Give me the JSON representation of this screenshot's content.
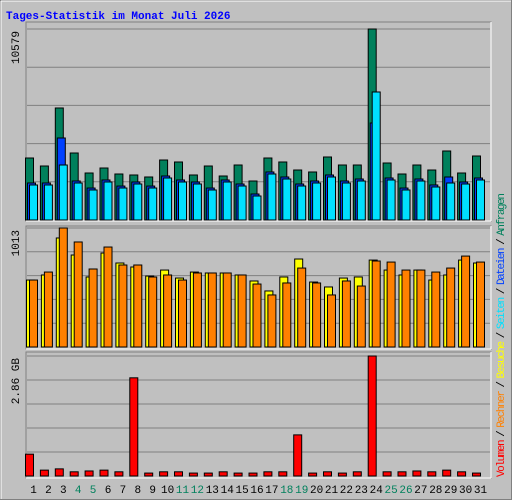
{
  "title": "Tages-Statistik im Monat Juli 2026",
  "legend_separator": "/",
  "chart_data": [
    {
      "type": "bar",
      "ylim": [
        0,
        10579
      ],
      "yticks": [
        10579
      ],
      "series": [
        {
          "name": "Anfragen",
          "color": "#00805c",
          "values": [
            3434,
            2991,
            6204,
            3711,
            2603,
            2880,
            2548,
            2493,
            2382,
            3323,
            3213,
            2493,
            2991,
            2437,
            3046,
            2160,
            3434,
            3213,
            2769,
            2659,
            3490,
            3046,
            3046,
            10579,
            3157,
            2548,
            3046,
            2769,
            3822,
            2603,
            3545
          ]
        },
        {
          "name": "Dateien",
          "color": "#0040ff",
          "values": [
            2050,
            2050,
            4542,
            2160,
            1770,
            2216,
            1880,
            2105,
            1880,
            2437,
            2216,
            2105,
            1770,
            2216,
            1994,
            1440,
            2660,
            2382,
            1994,
            2160,
            2493,
            2160,
            2271,
            5373,
            2326,
            1770,
            2271,
            1940,
            2382,
            2105,
            2326
          ]
        },
        {
          "name": "Seiten",
          "color": "#00e0ff",
          "values": [
            1939,
            1939,
            3046,
            2049,
            1662,
            2105,
            1772,
            1994,
            1772,
            2326,
            2105,
            1994,
            1662,
            2105,
            1883,
            1329,
            2548,
            2271,
            1883,
            2049,
            2382,
            2049,
            2160,
            7090,
            2216,
            1662,
            2160,
            1828,
            2049,
            1994,
            2216
          ]
        }
      ]
    },
    {
      "type": "bar",
      "ylim": [
        0,
        1013
      ],
      "yticks": [
        1013
      ],
      "series": [
        {
          "name": "Besuche",
          "color": "#ffff00",
          "values": [
            570,
            613,
            928,
            783,
            596,
            800,
            715,
            681,
            604,
            655,
            587,
            638,
            630,
            630,
            613,
            562,
            477,
            596,
            749,
            553,
            511,
            587,
            596,
            740,
            655,
            613,
            655,
            570,
            613,
            740,
            715
          ]
        },
        {
          "name": "Rechner",
          "color": "#ff8000",
          "values": [
            570,
            638,
            1013,
            894,
            664,
            851,
            698,
            698,
            596,
            613,
            570,
            630,
            630,
            630,
            613,
            536,
            443,
            545,
            672,
            545,
            443,
            562,
            519,
            732,
            723,
            655,
            655,
            638,
            672,
            774,
            723
          ]
        }
      ]
    },
    {
      "type": "bar",
      "ylim": [
        0,
        2.86
      ],
      "yticks": [
        {
          "value": 2.86,
          "label": "2.86 GB"
        }
      ],
      "categories": [
        "1",
        "2",
        "3",
        "4",
        "5",
        "6",
        "7",
        "8",
        "9",
        "10",
        "11",
        "12",
        "13",
        "14",
        "15",
        "16",
        "17",
        "18",
        "19",
        "20",
        "21",
        "22",
        "23",
        "24",
        "25",
        "26",
        "27",
        "28",
        "29",
        "30",
        "31"
      ],
      "category_colors": [
        "#000000",
        "#000000",
        "#000000",
        "#00805c",
        "#00805c",
        "#000000",
        "#000000",
        "#000000",
        "#000000",
        "#000000",
        "#00805c",
        "#00805c",
        "#000000",
        "#000000",
        "#000000",
        "#000000",
        "#000000",
        "#00805c",
        "#00805c",
        "#000000",
        "#000000",
        "#000000",
        "#000000",
        "#000000",
        "#00805c",
        "#00805c",
        "#000000",
        "#000000",
        "#000000",
        "#000000",
        "#000000"
      ],
      "series": [
        {
          "name": "Volumen",
          "color": "#ff0000",
          "values": [
            0.52,
            0.14,
            0.17,
            0.1,
            0.12,
            0.14,
            0.1,
            2.34,
            0.07,
            0.1,
            0.1,
            0.07,
            0.07,
            0.1,
            0.07,
            0.07,
            0.1,
            0.1,
            0.98,
            0.07,
            0.1,
            0.07,
            0.1,
            2.86,
            0.1,
            0.1,
            0.12,
            0.1,
            0.14,
            0.1,
            0.07
          ]
        }
      ]
    }
  ]
}
